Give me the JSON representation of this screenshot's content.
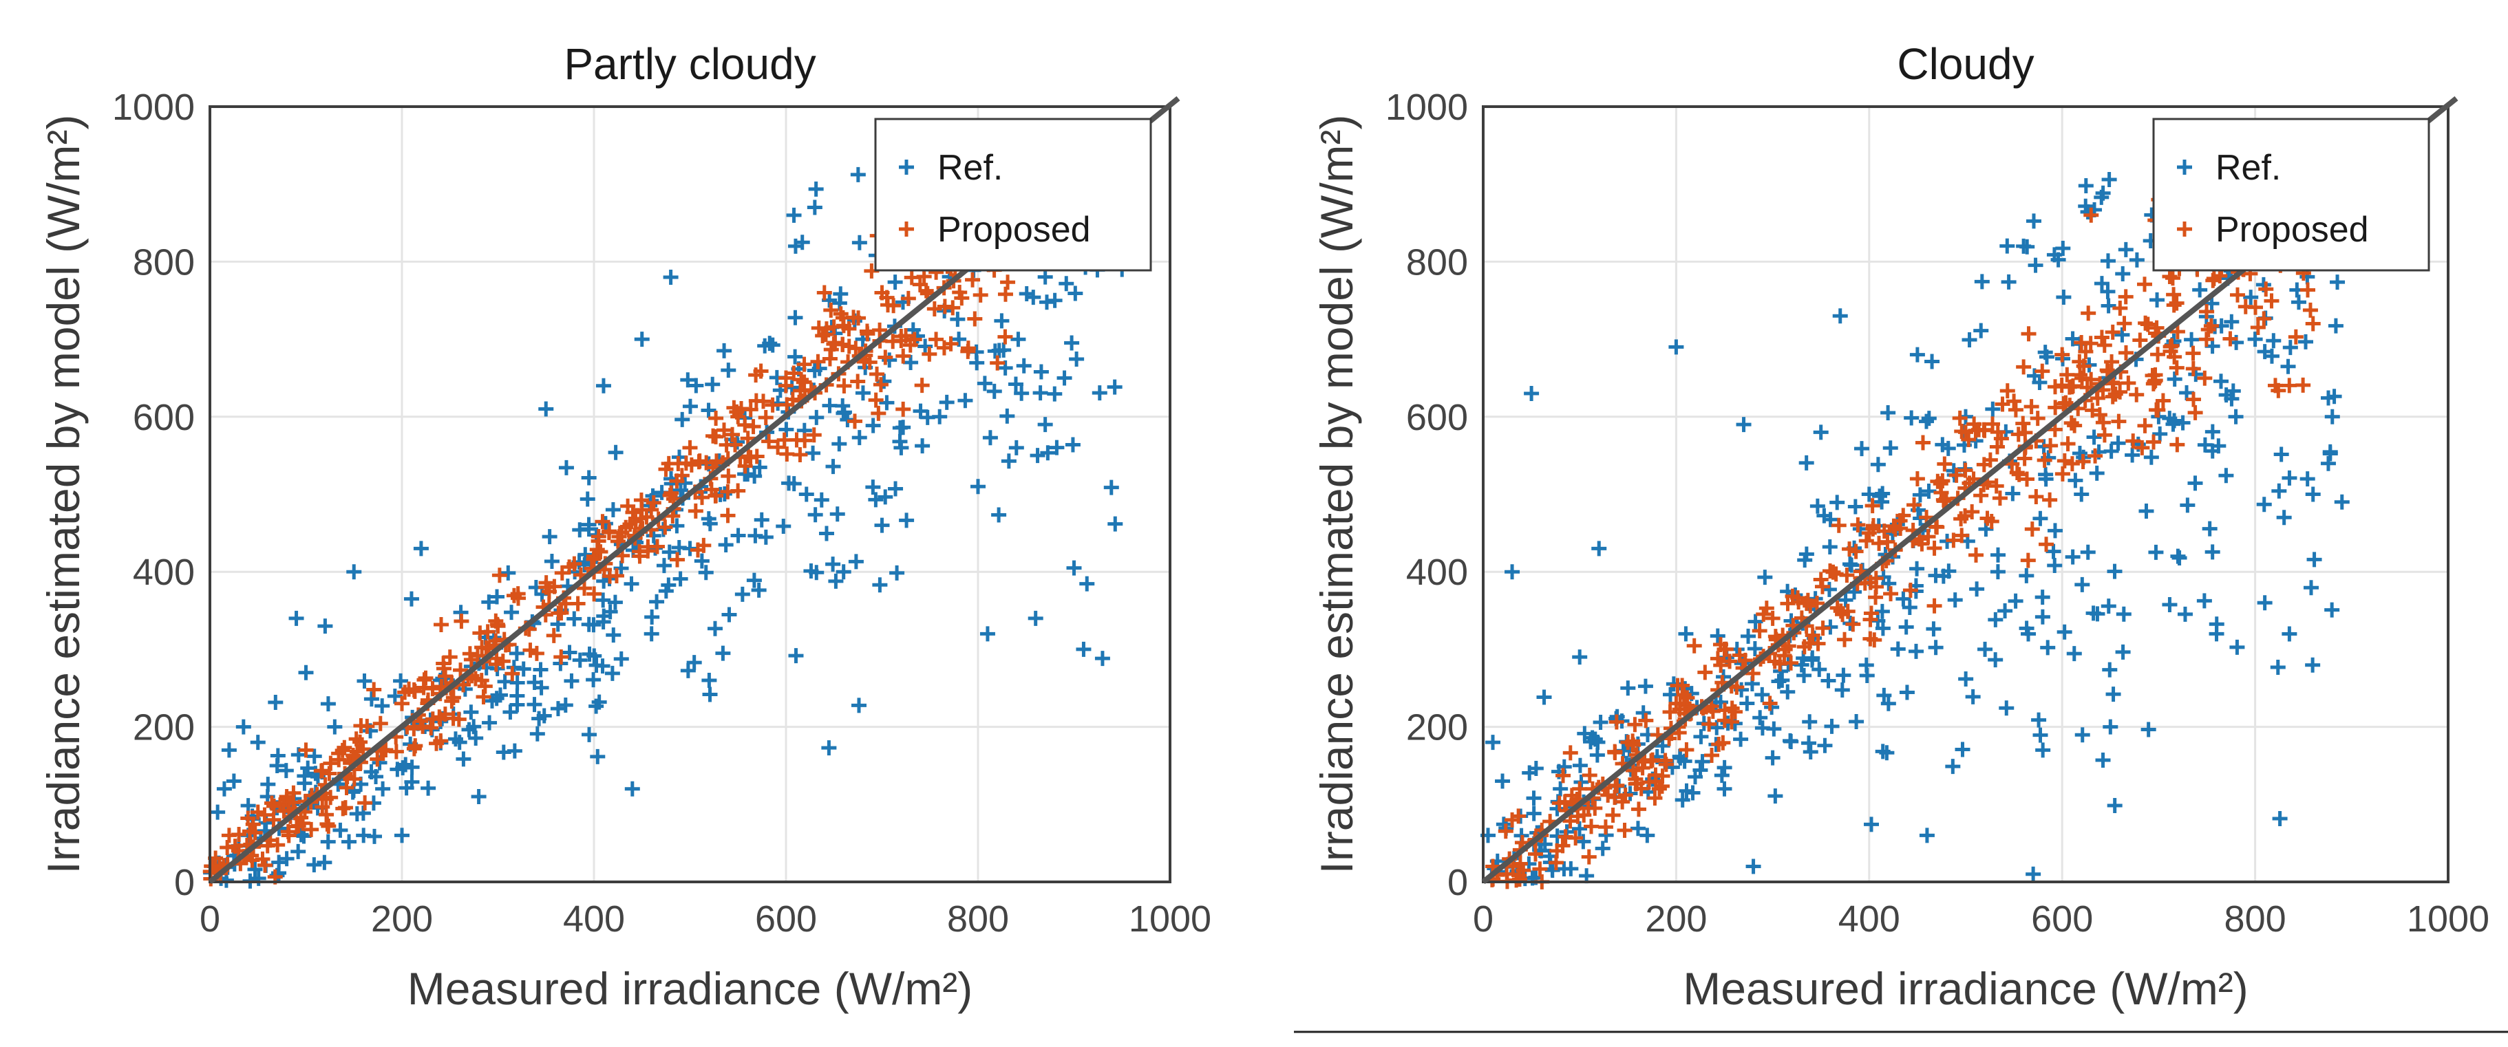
{
  "colors": {
    "ref": "#1f77b4",
    "proposed": "#d95319",
    "identity_line": "#555555"
  },
  "chart_data": [
    {
      "type": "scatter",
      "title": "Partly cloudy",
      "xlabel": "Measured irradiance (W/m²)",
      "ylabel": "Irradiance estimated by model (W/m²)",
      "xlim": [
        0,
        1000
      ],
      "ylim": [
        0,
        1000
      ],
      "xticks": [
        0,
        200,
        400,
        600,
        800,
        1000
      ],
      "yticks": [
        0,
        200,
        400,
        600,
        800,
        1000
      ],
      "grid": true,
      "legend_position": "top-right",
      "identity_line": {
        "from": [
          0,
          0
        ],
        "to": [
          1000,
          1000
        ]
      },
      "series": [
        {
          "name": "Ref.",
          "marker": "+",
          "color": "#1f77b4",
          "cloud": {
            "count": 420,
            "seed": 11,
            "xmin": 0,
            "xmax": 950,
            "slope": 0.93,
            "spread": 0.22,
            "min_spread": 55
          },
          "points": [
            [
              5,
              20
            ],
            [
              8,
              90
            ],
            [
              15,
              120
            ],
            [
              20,
              170
            ],
            [
              25,
              130
            ],
            [
              35,
              200
            ],
            [
              40,
              60
            ],
            [
              50,
              180
            ],
            [
              60,
              110
            ],
            [
              70,
              150
            ],
            [
              80,
              30
            ],
            [
              90,
              340
            ],
            [
              100,
              270
            ],
            [
              110,
              140
            ],
            [
              120,
              330
            ],
            [
              130,
              200
            ],
            [
              150,
              400
            ],
            [
              160,
              60
            ],
            [
              180,
              120
            ],
            [
              200,
              60
            ],
            [
              210,
              365
            ],
            [
              220,
              430
            ],
            [
              240,
              260
            ],
            [
              260,
              180
            ],
            [
              280,
              110
            ],
            [
              300,
              330
            ],
            [
              320,
              240
            ],
            [
              350,
              610
            ],
            [
              380,
              400
            ],
            [
              395,
              190
            ],
            [
              410,
              640
            ],
            [
              420,
              480
            ],
            [
              440,
              120
            ],
            [
              450,
              700
            ],
            [
              460,
              320
            ],
            [
              480,
              780
            ],
            [
              500,
              430
            ],
            [
              520,
              260
            ],
            [
              540,
              660
            ],
            [
              580,
              580
            ],
            [
              610,
              820
            ],
            [
              630,
              870
            ],
            [
              660,
              400
            ],
            [
              680,
              700
            ],
            [
              700,
              460
            ],
            [
              720,
              560
            ],
            [
              760,
              600
            ],
            [
              780,
              700
            ],
            [
              800,
              510
            ],
            [
              810,
              320
            ],
            [
              840,
              560
            ],
            [
              860,
              340
            ],
            [
              870,
              590
            ],
            [
              880,
              750
            ],
            [
              890,
              650
            ],
            [
              900,
              405
            ],
            [
              910,
              300
            ],
            [
              950,
              790
            ]
          ]
        },
        {
          "name": "Proposed",
          "marker": "+",
          "color": "#d95319",
          "cloud": {
            "count": 430,
            "seed": 23,
            "xmin": 0,
            "xmax": 840,
            "slope": 1.02,
            "spread": 0.07,
            "min_spread": 28
          },
          "points": [
            [
              10,
              20
            ],
            [
              20,
              60
            ],
            [
              30,
              40
            ],
            [
              50,
              90
            ],
            [
              80,
              110
            ],
            [
              100,
              170
            ],
            [
              150,
              160
            ],
            [
              200,
              230
            ],
            [
              250,
              290
            ],
            [
              300,
              330
            ],
            [
              350,
              380
            ],
            [
              400,
              420
            ],
            [
              450,
              480
            ],
            [
              500,
              560
            ],
            [
              550,
              600
            ],
            [
              600,
              650
            ],
            [
              640,
              760
            ],
            [
              700,
              760
            ],
            [
              720,
              880
            ],
            [
              760,
              820
            ],
            [
              800,
              860
            ],
            [
              820,
              830
            ],
            [
              840,
              880
            ]
          ]
        }
      ]
    },
    {
      "type": "scatter",
      "title": "Cloudy",
      "xlabel": "Measured irradiance (W/m²)",
      "ylabel": "Irradiance estimated by model (W/m²)",
      "xlim": [
        0,
        1000
      ],
      "ylim": [
        0,
        1000
      ],
      "xticks": [
        0,
        200,
        400,
        600,
        800,
        1000
      ],
      "yticks": [
        0,
        200,
        400,
        600,
        800,
        1000
      ],
      "grid": true,
      "legend_position": "top-right",
      "identity_line": {
        "from": [
          0,
          0
        ],
        "to": [
          1000,
          1000
        ]
      },
      "series": [
        {
          "name": "Ref.",
          "marker": "+",
          "color": "#1f77b4",
          "cloud": {
            "count": 440,
            "seed": 37,
            "xmin": 0,
            "xmax": 890,
            "slope": 0.9,
            "spread": 0.3,
            "min_spread": 60
          },
          "points": [
            [
              5,
              60
            ],
            [
              10,
              180
            ],
            [
              20,
              130
            ],
            [
              30,
              400
            ],
            [
              50,
              630
            ],
            [
              60,
              40
            ],
            [
              80,
              120
            ],
            [
              100,
              290
            ],
            [
              120,
              430
            ],
            [
              150,
              250
            ],
            [
              170,
              60
            ],
            [
              200,
              690
            ],
            [
              210,
              320
            ],
            [
              250,
              120
            ],
            [
              270,
              590
            ],
            [
              280,
              20
            ],
            [
              300,
              160
            ],
            [
              330,
              280
            ],
            [
              350,
              580
            ],
            [
              370,
              730
            ],
            [
              400,
              500
            ],
            [
              420,
              230
            ],
            [
              450,
              680
            ],
            [
              460,
              60
            ],
            [
              500,
              600
            ],
            [
              520,
              300
            ],
            [
              560,
              820
            ],
            [
              570,
              10
            ],
            [
              580,
              170
            ],
            [
              620,
              500
            ],
            [
              650,
              200
            ],
            [
              700,
              600
            ],
            [
              720,
              420
            ],
            [
              760,
              320
            ],
            [
              780,
              600
            ],
            [
              800,
              700
            ],
            [
              810,
              360
            ],
            [
              830,
              470
            ],
            [
              860,
              500
            ],
            [
              880,
              600
            ],
            [
              890,
              490
            ]
          ]
        },
        {
          "name": "Proposed",
          "marker": "+",
          "color": "#d95319",
          "cloud": {
            "count": 450,
            "seed": 53,
            "xmin": 0,
            "xmax": 860,
            "slope": 1.0,
            "spread": 0.1,
            "min_spread": 35
          },
          "points": [
            [
              10,
              20
            ],
            [
              30,
              80
            ],
            [
              60,
              60
            ],
            [
              100,
              120
            ],
            [
              150,
              180
            ],
            [
              200,
              230
            ],
            [
              250,
              300
            ],
            [
              300,
              340
            ],
            [
              350,
              390
            ],
            [
              400,
              450
            ],
            [
              450,
              520
            ],
            [
              500,
              580
            ],
            [
              550,
              620
            ],
            [
              600,
              680
            ],
            [
              630,
              860
            ],
            [
              660,
              740
            ],
            [
              700,
              880
            ],
            [
              740,
              790
            ],
            [
              780,
              820
            ],
            [
              820,
              860
            ],
            [
              860,
              720
            ]
          ]
        }
      ]
    }
  ]
}
